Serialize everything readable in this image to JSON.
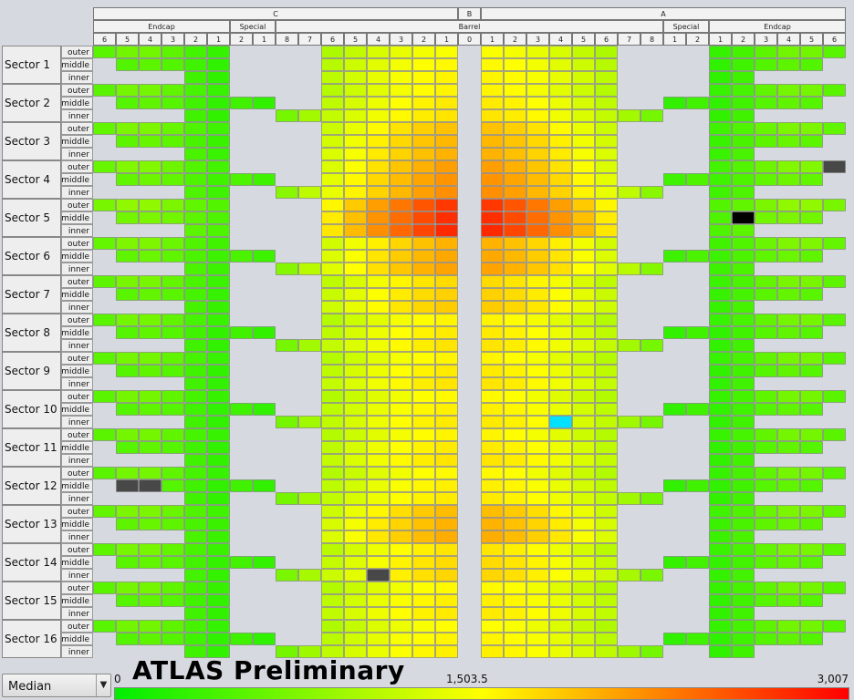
{
  "chart_data": {
    "type": "heatmap",
    "title": "",
    "watermark": "ATLAS Preliminary",
    "top_groups": [
      "C",
      "B",
      "A"
    ],
    "mid_groups": [
      "Endcap",
      "Special",
      "Barrel",
      "Special",
      "Endcap"
    ],
    "columns": [
      "6",
      "5",
      "4",
      "3",
      "2",
      "1",
      "2",
      "1",
      "8",
      "7",
      "6",
      "5",
      "4",
      "3",
      "2",
      "1",
      "0",
      "1",
      "2",
      "3",
      "4",
      "5",
      "6",
      "7",
      "8",
      "1",
      "2",
      "1",
      "2",
      "3",
      "4",
      "5",
      "6"
    ],
    "sectors": [
      "Sector 1",
      "Sector 2",
      "Sector 3",
      "Sector 4",
      "Sector 5",
      "Sector 6",
      "Sector 7",
      "Sector 8",
      "Sector 9",
      "Sector 10",
      "Sector 11",
      "Sector 12",
      "Sector 13",
      "Sector 14",
      "Sector 15",
      "Sector 16"
    ],
    "layers": [
      "outer",
      "middle",
      "inner"
    ],
    "selector": "Median",
    "scale": {
      "min_label": "0",
      "mid_label": "1,503.5",
      "max_label": "3,007",
      "min": 0,
      "max": 3007
    },
    "colormap": [
      "#00ee00",
      "#ffff00",
      "#ff0000"
    ],
    "special_colors": {
      "dead": "#484848",
      "off": "#000000",
      "cold": "#00e0ff"
    },
    "defaults": {
      "endcap": [
        [
          0.17,
          0.22,
          0.22,
          0.18,
          0.13,
          0.1
        ],
        [
          0.12,
          0.16,
          0.18,
          0.16,
          0.12,
          0.09
        ],
        [
          0.14,
          0.16,
          0.16,
          0.15,
          0.12,
          0.09
        ]
      ],
      "special": [
        0.12,
        0.09
      ],
      "barrel": [
        [
          0.2,
          0.27,
          0.33,
          0.37,
          0.41,
          0.44,
          0.46,
          0.47
        ],
        [
          0.21,
          0.28,
          0.35,
          0.39,
          0.43,
          0.46,
          0.48,
          0.49
        ],
        [
          0.22,
          0.3,
          0.36,
          0.4,
          0.44,
          0.47,
          0.49,
          0.5
        ]
      ]
    },
    "sector_gain": [
      0.02,
      0.05,
      0.15,
      0.22,
      0.42,
      0.18,
      0.1,
      0.05,
      0.05,
      0.04,
      0.05,
      0.04,
      0.16,
      0.08,
      0.04,
      0.03
    ],
    "special_cells": [
      {
        "sector": 4,
        "layer": "middle",
        "column": 6,
        "state": "dead"
      },
      {
        "sector": 4,
        "layer": "middle",
        "column": 28,
        "state": "off"
      },
      {
        "sector": 3,
        "layer": "outer",
        "column": 32,
        "state": "dead"
      },
      {
        "sector": 11,
        "layer": "middle",
        "column": 1,
        "state": "dead"
      },
      {
        "sector": 11,
        "layer": "middle",
        "column": 2,
        "state": "dead"
      },
      {
        "sector": 12,
        "layer": "inner",
        "column": 30,
        "state": "dead"
      },
      {
        "sector": 13,
        "layer": "inner",
        "column": 12,
        "state": "dead"
      },
      {
        "sector": 9,
        "layer": "inner",
        "column": 20,
        "state": "cold"
      }
    ]
  }
}
